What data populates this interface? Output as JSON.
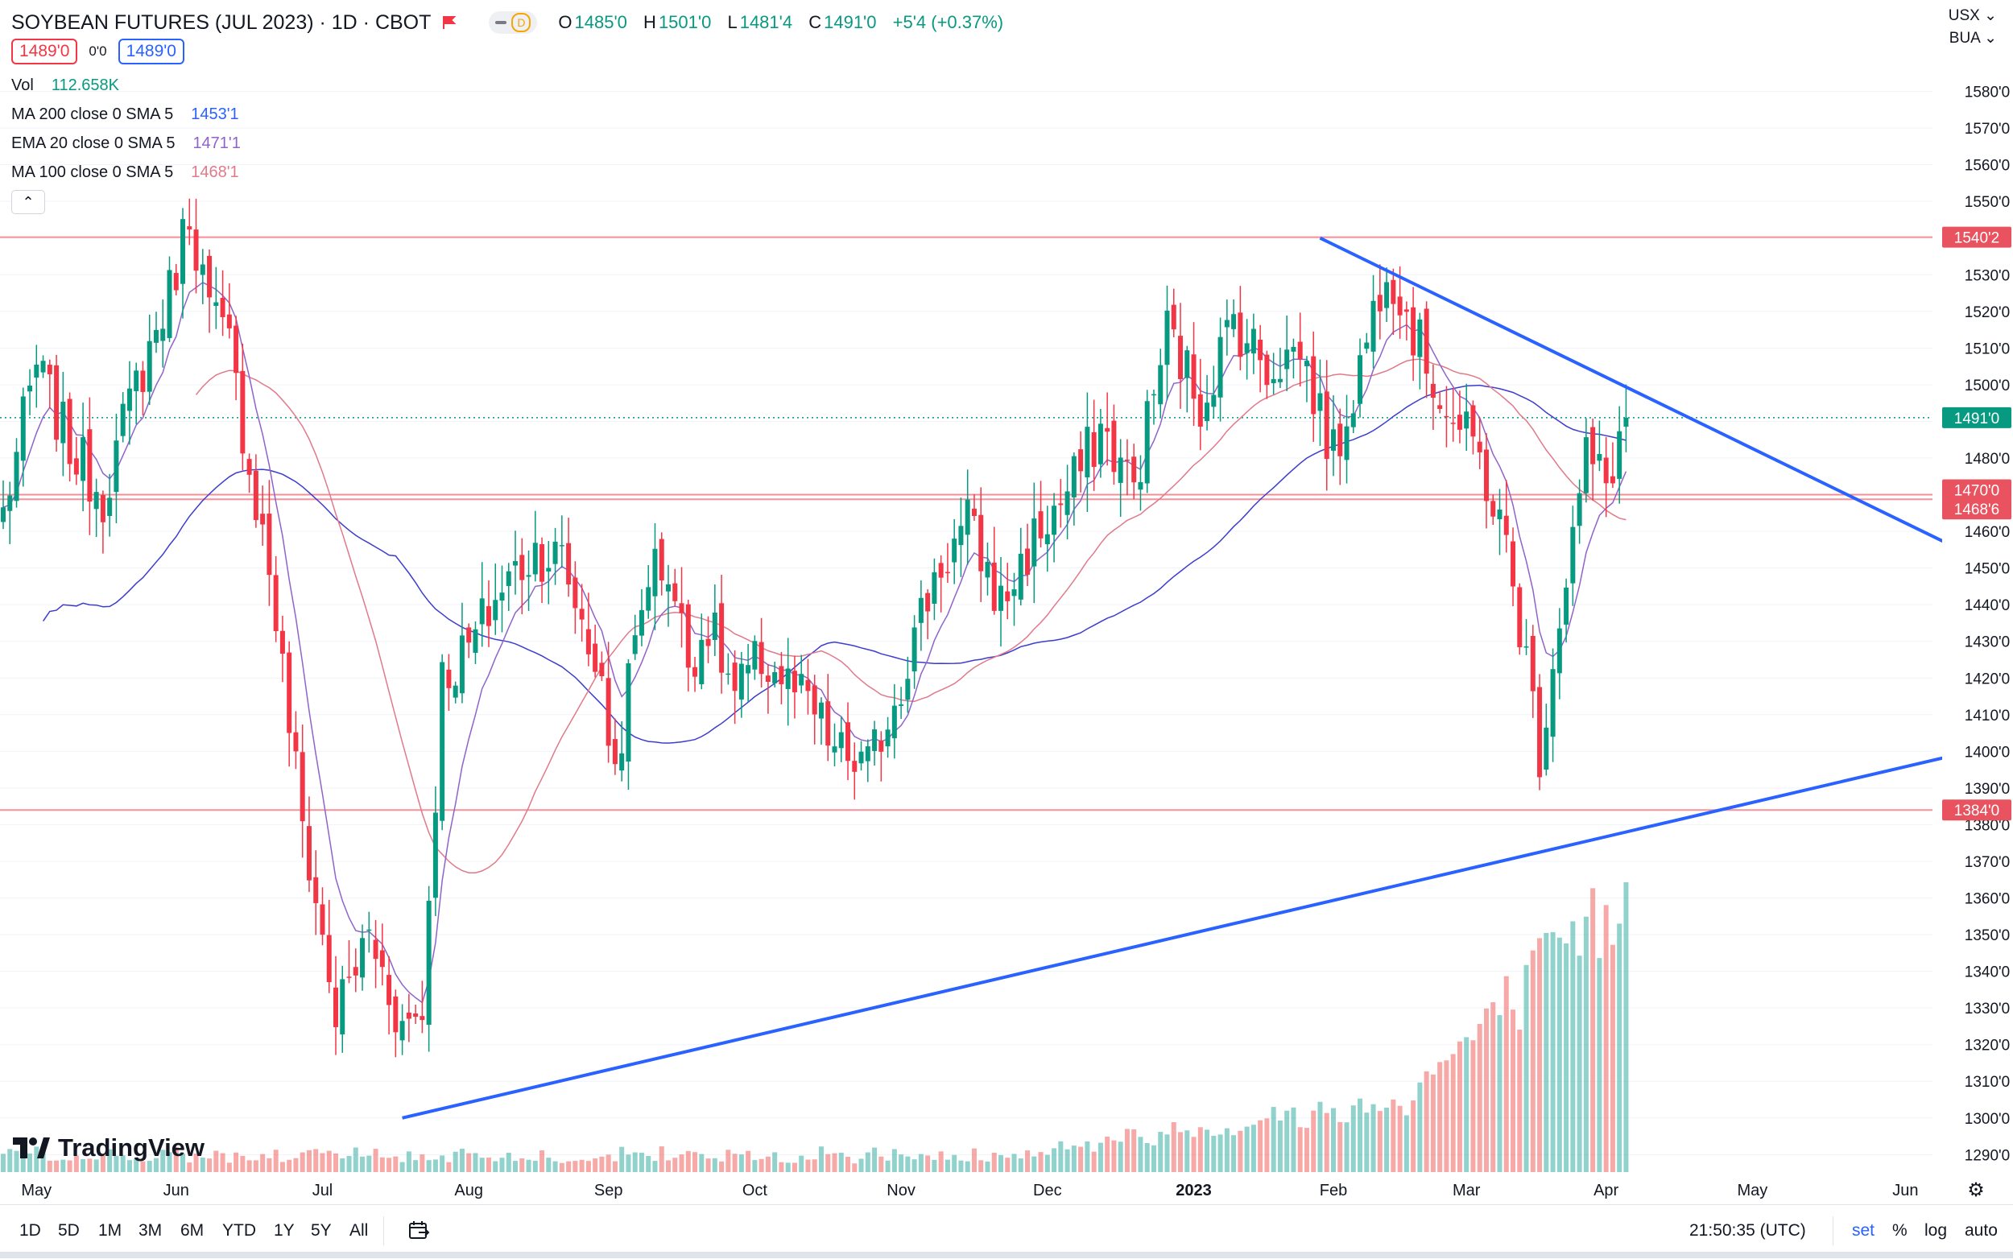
{
  "header": {
    "symbol_title": "SOYBEAN FUTURES (JUL 2023) · 1D · CBOT",
    "delay_tag": "D",
    "ohlc": [
      {
        "k": "O",
        "v": "1485'0"
      },
      {
        "k": "H",
        "v": "1501'0"
      },
      {
        "k": "L",
        "v": "1481'4"
      },
      {
        "k": "C",
        "v": "1491'0"
      },
      {
        "k": "",
        "v": "+5'4 (+0.37%)"
      }
    ],
    "bid": "1489'0",
    "spread": "0'0",
    "ask": "1489'0",
    "currency": "USX",
    "unit": "BUA"
  },
  "indicators": {
    "vol": {
      "label": "Vol",
      "value": "112.658K"
    },
    "ma200": {
      "label": "MA 200 close 0 SMA 5",
      "value": "1453'1"
    },
    "ema20": {
      "label": "EMA 20 close 0 SMA 5",
      "value": "1471'1"
    },
    "ma100": {
      "label": "MA 100 close 0 SMA 5",
      "value": "1468'1"
    }
  },
  "colors": {
    "up": "#089981",
    "down": "#f23645",
    "ma200": "#3c3ccf",
    "ema20": "#8f63c9",
    "ma100": "#e07a8a",
    "trendline": "#2962ff",
    "hline": "#f23645",
    "price_line": "#089981"
  },
  "chart_data": {
    "type": "candlestick",
    "title": "SOYBEAN FUTURES (JUL 2023) · 1D · CBOT",
    "y_scale": {
      "min": 1287,
      "max": 1590
    },
    "y_ticks": [
      "1290'0",
      "1300'0",
      "1310'0",
      "1320'0",
      "1330'0",
      "1340'0",
      "1350'0",
      "1360'0",
      "1370'0",
      "1380'0",
      "1390'0",
      "1400'0",
      "1410'0",
      "1420'0",
      "1430'0",
      "1440'0",
      "1450'0",
      "1460'0",
      "1470'0",
      "1480'0",
      "1490'0",
      "1500'0",
      "1510'0",
      "1520'0",
      "1530'0",
      "1540'0",
      "1550'0",
      "1560'0",
      "1570'0",
      "1580'0"
    ],
    "x_month_labels": [
      "May",
      "Jun",
      "Jul",
      "Aug",
      "Sep",
      "Oct",
      "Nov",
      "Dec",
      "2023",
      "Feb",
      "Mar",
      "Apr",
      "May",
      "Jun"
    ],
    "bar_count": 245,
    "close_anchors": [
      [
        0,
        1465
      ],
      [
        5,
        1505
      ],
      [
        10,
        1483
      ],
      [
        15,
        1470
      ],
      [
        20,
        1500
      ],
      [
        25,
        1525
      ],
      [
        28,
        1548
      ],
      [
        31,
        1520
      ],
      [
        34,
        1510
      ],
      [
        37,
        1478
      ],
      [
        40,
        1450
      ],
      [
        45,
        1380
      ],
      [
        50,
        1328
      ],
      [
        55,
        1350
      ],
      [
        60,
        1325
      ],
      [
        63,
        1330
      ],
      [
        66,
        1420
      ],
      [
        70,
        1428
      ],
      [
        75,
        1445
      ],
      [
        80,
        1455
      ],
      [
        84,
        1452
      ],
      [
        89,
        1425
      ],
      [
        92,
        1395
      ],
      [
        94,
        1418
      ],
      [
        97,
        1450
      ],
      [
        100,
        1450
      ],
      [
        103,
        1425
      ],
      [
        106,
        1435
      ],
      [
        110,
        1415
      ],
      [
        114,
        1425
      ],
      [
        117,
        1420
      ],
      [
        122,
        1410
      ],
      [
        125,
        1400
      ],
      [
        130,
        1395
      ],
      [
        135,
        1420
      ],
      [
        140,
        1448
      ],
      [
        145,
        1462
      ],
      [
        150,
        1440
      ],
      [
        155,
        1458
      ],
      [
        160,
        1470
      ],
      [
        165,
        1488
      ],
      [
        170,
        1472
      ],
      [
        175,
        1515
      ],
      [
        180,
        1495
      ],
      [
        185,
        1518
      ],
      [
        190,
        1505
      ],
      [
        195,
        1510
      ],
      [
        200,
        1480
      ],
      [
        204,
        1505
      ],
      [
        208,
        1535
      ],
      [
        213,
        1510
      ],
      [
        218,
        1490
      ],
      [
        222,
        1480
      ],
      [
        226,
        1455
      ],
      [
        229,
        1425
      ],
      [
        231,
        1400
      ],
      [
        234,
        1438
      ],
      [
        238,
        1480
      ],
      [
        241,
        1473
      ],
      [
        244,
        1491
      ]
    ],
    "horizontal_lines": [
      {
        "price": 1540.25,
        "label": "1540'2"
      },
      {
        "price": 1470,
        "label": "1470'0"
      },
      {
        "price": 1468.75,
        "label": "1468'6"
      },
      {
        "price": 1384,
        "label": "1384'0"
      }
    ],
    "last_price": {
      "price": 1491,
      "label": "1491'0"
    },
    "trendlines": [
      {
        "name": "descending resistance",
        "from": {
          "bar": 198,
          "price": 1540
        },
        "to": {
          "bar": 335,
          "price": 1419
        }
      },
      {
        "name": "ascending support",
        "from": {
          "bar": 60,
          "price": 1300
        },
        "to": {
          "bar": 336,
          "price": 1417
        }
      }
    ],
    "volume_note": "volume histogram at bottom; increases into Mar-Apr 2023"
  },
  "bottom_bar": {
    "ranges": [
      "1D",
      "5D",
      "1M",
      "3M",
      "6M",
      "YTD",
      "1Y",
      "5Y",
      "All"
    ],
    "time": "21:50:35 (UTC)",
    "set_label": "set",
    "percent_label": "%",
    "log_label": "log",
    "auto_label": "auto"
  },
  "branding": {
    "logo_text": "TradingView"
  }
}
